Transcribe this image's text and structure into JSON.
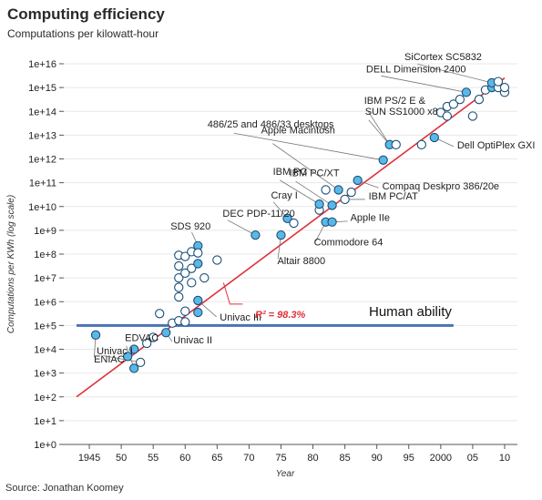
{
  "header": {
    "title": "Computing efficiency",
    "subtitle": "Computations per kilowatt-hour"
  },
  "source": "Source: Jonathan Koomey",
  "colors": {
    "background": "#ffffff",
    "grid": "#e8e8e8",
    "point_fill": "#5bb8e6",
    "point_stroke": "#1a4f78",
    "open_point_fill": "#ffffff",
    "trend_line": "#e0303c",
    "human_line": "#4a72b4"
  },
  "chart_data": {
    "type": "scatter",
    "title": "Computing efficiency",
    "subtitle": "Computations per kilowatt-hour",
    "xlabel": "Year",
    "ylabel": "Computations per KWh (log scale)",
    "xlim": [
      1941,
      2012
    ],
    "ylim_exp": [
      0,
      16
    ],
    "log_scale": true,
    "grid": true,
    "x_ticks": [
      {
        "value": 1945,
        "label": "1945"
      },
      {
        "value": 1950,
        "label": "50"
      },
      {
        "value": 1955,
        "label": "55"
      },
      {
        "value": 1960,
        "label": "60"
      },
      {
        "value": 1965,
        "label": "65"
      },
      {
        "value": 1970,
        "label": "70"
      },
      {
        "value": 1975,
        "label": "75"
      },
      {
        "value": 1980,
        "label": "80"
      },
      {
        "value": 1985,
        "label": "85"
      },
      {
        "value": 1990,
        "label": "90"
      },
      {
        "value": 1995,
        "label": "95"
      },
      {
        "value": 2000,
        "label": "2000"
      },
      {
        "value": 2005,
        "label": "05"
      },
      {
        "value": 2010,
        "label": "10"
      }
    ],
    "y_ticks": [
      {
        "exp": 0,
        "label": "1e+0"
      },
      {
        "exp": 1,
        "label": "1e+1"
      },
      {
        "exp": 2,
        "label": "1e+2"
      },
      {
        "exp": 3,
        "label": "1e+3"
      },
      {
        "exp": 4,
        "label": "1e+4"
      },
      {
        "exp": 5,
        "label": "1e+5"
      },
      {
        "exp": 6,
        "label": "1e+6"
      },
      {
        "exp": 7,
        "label": "1e+7"
      },
      {
        "exp": 8,
        "label": "1e+8"
      },
      {
        "exp": 9,
        "label": "1e+9"
      },
      {
        "exp": 10,
        "label": "1e+10"
      },
      {
        "exp": 11,
        "label": "1e+11"
      },
      {
        "exp": 12,
        "label": "1e+12"
      },
      {
        "exp": 13,
        "label": "1e+13"
      },
      {
        "exp": 14,
        "label": "1e+14"
      },
      {
        "exp": 15,
        "label": "1e+15"
      },
      {
        "exp": 16,
        "label": "1e+16"
      }
    ],
    "trend_line": {
      "x": [
        1943,
        2010
      ],
      "y_exp": [
        2.0,
        15.4
      ]
    },
    "human_ability": {
      "value_exp": 5.0,
      "label": "Human ability"
    },
    "r_squared_label": "R² = 98.3%",
    "points": [
      {
        "x": 1946,
        "y": 4.6,
        "open": false
      },
      {
        "x": 1951,
        "y": 3.7,
        "open": false
      },
      {
        "x": 1952,
        "y": 4.0,
        "open": false
      },
      {
        "x": 1952,
        "y": 3.2,
        "open": false
      },
      {
        "x": 1953,
        "y": 3.45,
        "open": true
      },
      {
        "x": 1954,
        "y": 4.25,
        "open": true
      },
      {
        "x": 1955,
        "y": 4.5,
        "open": true
      },
      {
        "x": 1956,
        "y": 5.5,
        "open": true
      },
      {
        "x": 1957,
        "y": 4.7,
        "open": false
      },
      {
        "x": 1958,
        "y": 5.1,
        "open": true
      },
      {
        "x": 1959,
        "y": 5.2,
        "open": true
      },
      {
        "x": 1959,
        "y": 6.2,
        "open": true
      },
      {
        "x": 1959,
        "y": 6.6,
        "open": true
      },
      {
        "x": 1959,
        "y": 7.0,
        "open": true
      },
      {
        "x": 1959,
        "y": 7.5,
        "open": true
      },
      {
        "x": 1959,
        "y": 7.95,
        "open": true
      },
      {
        "x": 1960,
        "y": 5.6,
        "open": true
      },
      {
        "x": 1960,
        "y": 5.15,
        "open": true
      },
      {
        "x": 1960,
        "y": 7.2,
        "open": true
      },
      {
        "x": 1960,
        "y": 7.9,
        "open": true
      },
      {
        "x": 1961,
        "y": 6.8,
        "open": true
      },
      {
        "x": 1961,
        "y": 7.4,
        "open": true
      },
      {
        "x": 1961,
        "y": 8.1,
        "open": true
      },
      {
        "x": 1962,
        "y": 5.55,
        "open": false
      },
      {
        "x": 1962,
        "y": 6.05,
        "open": false
      },
      {
        "x": 1962,
        "y": 7.6,
        "open": false
      },
      {
        "x": 1962,
        "y": 8.35,
        "open": false
      },
      {
        "x": 1962,
        "y": 8.05,
        "open": true
      },
      {
        "x": 1963,
        "y": 7.0,
        "open": true
      },
      {
        "x": 1965,
        "y": 7.75,
        "open": true
      },
      {
        "x": 1971,
        "y": 8.8,
        "open": false
      },
      {
        "x": 1975,
        "y": 8.8,
        "open": false
      },
      {
        "x": 1976,
        "y": 9.5,
        "open": false
      },
      {
        "x": 1977,
        "y": 9.3,
        "open": true
      },
      {
        "x": 1981,
        "y": 9.85,
        "open": true
      },
      {
        "x": 1981,
        "y": 10.1,
        "open": false
      },
      {
        "x": 1982,
        "y": 9.35,
        "open": false
      },
      {
        "x": 1982,
        "y": 10.7,
        "open": true
      },
      {
        "x": 1983,
        "y": 9.35,
        "open": false
      },
      {
        "x": 1983,
        "y": 10.05,
        "open": false
      },
      {
        "x": 1984,
        "y": 10.7,
        "open": false
      },
      {
        "x": 1985,
        "y": 10.3,
        "open": true
      },
      {
        "x": 1986,
        "y": 10.6,
        "open": true
      },
      {
        "x": 1987,
        "y": 11.1,
        "open": false
      },
      {
        "x": 1991,
        "y": 11.95,
        "open": false
      },
      {
        "x": 1992,
        "y": 12.6,
        "open": false
      },
      {
        "x": 1993,
        "y": 12.6,
        "open": true
      },
      {
        "x": 1997,
        "y": 12.6,
        "open": true
      },
      {
        "x": 1999,
        "y": 12.9,
        "open": false
      },
      {
        "x": 2000,
        "y": 13.95,
        "open": true
      },
      {
        "x": 2001,
        "y": 13.8,
        "open": true
      },
      {
        "x": 2001,
        "y": 14.2,
        "open": true
      },
      {
        "x": 2002,
        "y": 14.3,
        "open": true
      },
      {
        "x": 2003,
        "y": 14.5,
        "open": true
      },
      {
        "x": 2004,
        "y": 14.8,
        "open": false
      },
      {
        "x": 2005,
        "y": 13.8,
        "open": true
      },
      {
        "x": 2006,
        "y": 14.5,
        "open": true
      },
      {
        "x": 2007,
        "y": 14.9,
        "open": true
      },
      {
        "x": 2008,
        "y": 15.0,
        "open": false
      },
      {
        "x": 2008,
        "y": 15.2,
        "open": false
      },
      {
        "x": 2009,
        "y": 15.0,
        "open": true
      },
      {
        "x": 2009,
        "y": 15.25,
        "open": true
      },
      {
        "x": 2010,
        "y": 14.8,
        "open": true
      },
      {
        "x": 2010,
        "y": 15.0,
        "open": true
      }
    ],
    "annotations": [
      {
        "label": "ENIAC",
        "x": 1946,
        "y": 4.6
      },
      {
        "label": "EDVAC",
        "x": 1952,
        "y": 3.2
      },
      {
        "label": "Univac I",
        "x": 1953,
        "y": 3.45
      },
      {
        "label": "Univac II",
        "x": 1957,
        "y": 4.7
      },
      {
        "label": "Univac III",
        "x": 1962,
        "y": 6.05
      },
      {
        "label": "SDS 920",
        "x": 1962,
        "y": 8.35
      },
      {
        "label": "DEC PDP-11/20",
        "x": 1971,
        "y": 8.8
      },
      {
        "label": "Altair 8800",
        "x": 1975,
        "y": 8.8
      },
      {
        "label": "Cray I",
        "x": 1976,
        "y": 9.5
      },
      {
        "label": "IBM PC",
        "x": 1981,
        "y": 10.1
      },
      {
        "label": "IBM PC/XT",
        "x": 1983,
        "y": 10.05
      },
      {
        "label": "Apple Macintosh",
        "x": 1984,
        "y": 10.7
      },
      {
        "label": "Apple IIe",
        "x": 1983,
        "y": 9.35
      },
      {
        "label": "Commodore 64",
        "x": 1982,
        "y": 9.35
      },
      {
        "label": "IBM PC/AT",
        "x": 1985,
        "y": 10.3
      },
      {
        "label": "Compaq Deskpro 386/20e",
        "x": 1987,
        "y": 11.1
      },
      {
        "label": "486/25 and 486/33 desktops",
        "x": 1991,
        "y": 11.95
      },
      {
        "label": "IBM PS/2 E &",
        "x": 1992,
        "y": 12.6
      },
      {
        "label": "SUN SS1000 x8",
        "x": 1992,
        "y": 12.6
      },
      {
        "label": "Dell OptiPlex GXI",
        "x": 1999,
        "y": 12.9
      },
      {
        "label": "DELL Dimension 2400",
        "x": 2004,
        "y": 14.8
      },
      {
        "label": "SiCortex SC5832",
        "x": 2008,
        "y": 15.2
      }
    ]
  }
}
